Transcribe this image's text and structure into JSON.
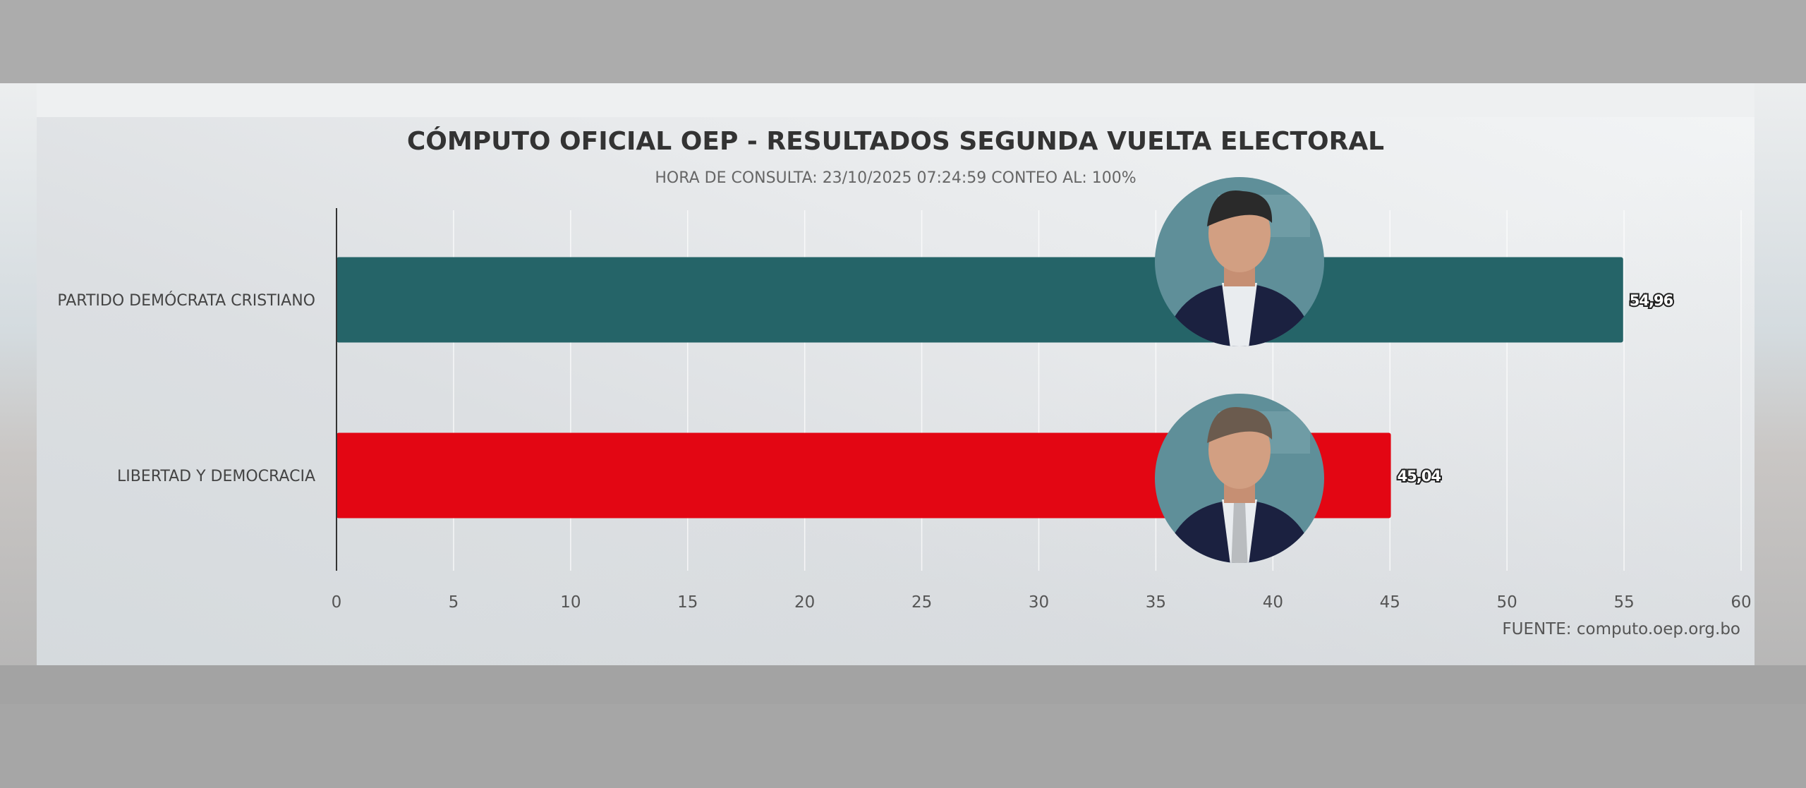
{
  "chart_data": {
    "type": "bar",
    "orientation": "horizontal",
    "title": "CÓMPUTO OFICIAL OEP - RESULTADOS SEGUNDA VUELTA ELECTORAL",
    "subtitle": "HORA DE CONSULTA: 23/10/2025 07:24:59 CONTEO AL: 100%",
    "categories": [
      "PARTIDO DEMÓCRATA CRISTIANO",
      "LIBERTAD Y DEMOCRACIA"
    ],
    "values": [
      54.96,
      45.04
    ],
    "value_labels": [
      "54,96",
      "45,04"
    ],
    "colors": [
      "#256468",
      "#e30613"
    ],
    "xlim": [
      0,
      60
    ],
    "x_ticks": [
      0,
      5,
      10,
      15,
      20,
      25,
      30,
      35,
      40,
      45,
      50,
      55,
      60
    ],
    "grid": true,
    "source": "FUENTE: computo.oep.org.bo",
    "bar_images": [
      "candidate-photo",
      "candidate-photo"
    ]
  }
}
